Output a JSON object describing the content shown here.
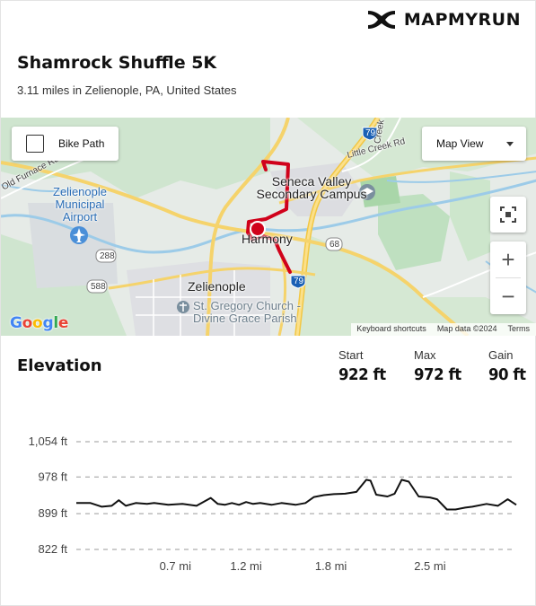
{
  "brand": {
    "name": "MAPMYRUN",
    "logo_icon": "under-armour-logo"
  },
  "route": {
    "title": "Shamrock Shuffle 5K",
    "subtitle": "3.11 miles in Zelienople, PA, United States"
  },
  "map": {
    "bike_path_label": "Bike Path",
    "bike_path_checked": false,
    "view_label": "Map View",
    "zoom_in": "+",
    "zoom_out": "−",
    "google_logo": "Google",
    "attribution": {
      "shortcuts": "Keyboard shortcuts",
      "data": "Map data ©2024",
      "terms": "Terms"
    },
    "labels": {
      "old_furnace": "Old Furnace Rd",
      "airport_1": "Zelienople",
      "airport_2": "Municipal",
      "airport_3": "Airport",
      "seneca_1": "Seneca Valley",
      "seneca_2": "Secondary Campus",
      "harmony": "Harmony",
      "zelienople": "Zelienople",
      "church_1": "St. Gregory Church -",
      "church_2": "Divine Grace Parish",
      "little_creek": "Little Creek Rd",
      "creek_rd": "Creek Rd",
      "rt288": "288",
      "rt588": "588",
      "rt68": "68",
      "i79_top": "79",
      "i79_bottom": "79"
    },
    "route_color": "#d0021b"
  },
  "elevation": {
    "title": "Elevation",
    "stats": [
      {
        "label": "Start",
        "value": "922 ft"
      },
      {
        "label": "Max",
        "value": "972 ft"
      },
      {
        "label": "Gain",
        "value": "90 ft"
      }
    ]
  },
  "chart_data": {
    "type": "line",
    "title": "",
    "xlabel": "",
    "ylabel": "",
    "y_ticks": [
      {
        "value": 1054,
        "label": "1,054 ft"
      },
      {
        "value": 978,
        "label": "978 ft"
      },
      {
        "value": 899,
        "label": "899 ft"
      },
      {
        "value": 822,
        "label": "822 ft"
      }
    ],
    "x_ticks": [
      {
        "value": 0.7,
        "label": "0.7 mi"
      },
      {
        "value": 1.2,
        "label": "1.2 mi"
      },
      {
        "value": 1.8,
        "label": "1.8 mi"
      },
      {
        "value": 2.5,
        "label": "2.5 mi"
      }
    ],
    "xlim": [
      0,
      3.11
    ],
    "ylim": [
      822,
      1054
    ],
    "grid": true,
    "line_color": "#111111",
    "x": [
      0,
      0.1,
      0.18,
      0.25,
      0.3,
      0.35,
      0.42,
      0.5,
      0.55,
      0.65,
      0.75,
      0.85,
      0.95,
      1.0,
      1.05,
      1.1,
      1.15,
      1.2,
      1.25,
      1.3,
      1.38,
      1.45,
      1.55,
      1.62,
      1.68,
      1.75,
      1.82,
      1.9,
      1.98,
      2.05,
      2.08,
      2.12,
      2.2,
      2.25,
      2.3,
      2.35,
      2.42,
      2.5,
      2.55,
      2.62,
      2.68,
      2.75,
      2.8,
      2.9,
      2.98,
      3.05,
      3.11
    ],
    "y": [
      922,
      922,
      914,
      916,
      928,
      916,
      922,
      920,
      922,
      918,
      920,
      916,
      933,
      920,
      918,
      922,
      918,
      924,
      920,
      922,
      918,
      922,
      918,
      922,
      935,
      939,
      941,
      942,
      946,
      972,
      970,
      940,
      936,
      942,
      972,
      968,
      936,
      934,
      930,
      908,
      908,
      912,
      914,
      920,
      916,
      930,
      918
    ]
  }
}
